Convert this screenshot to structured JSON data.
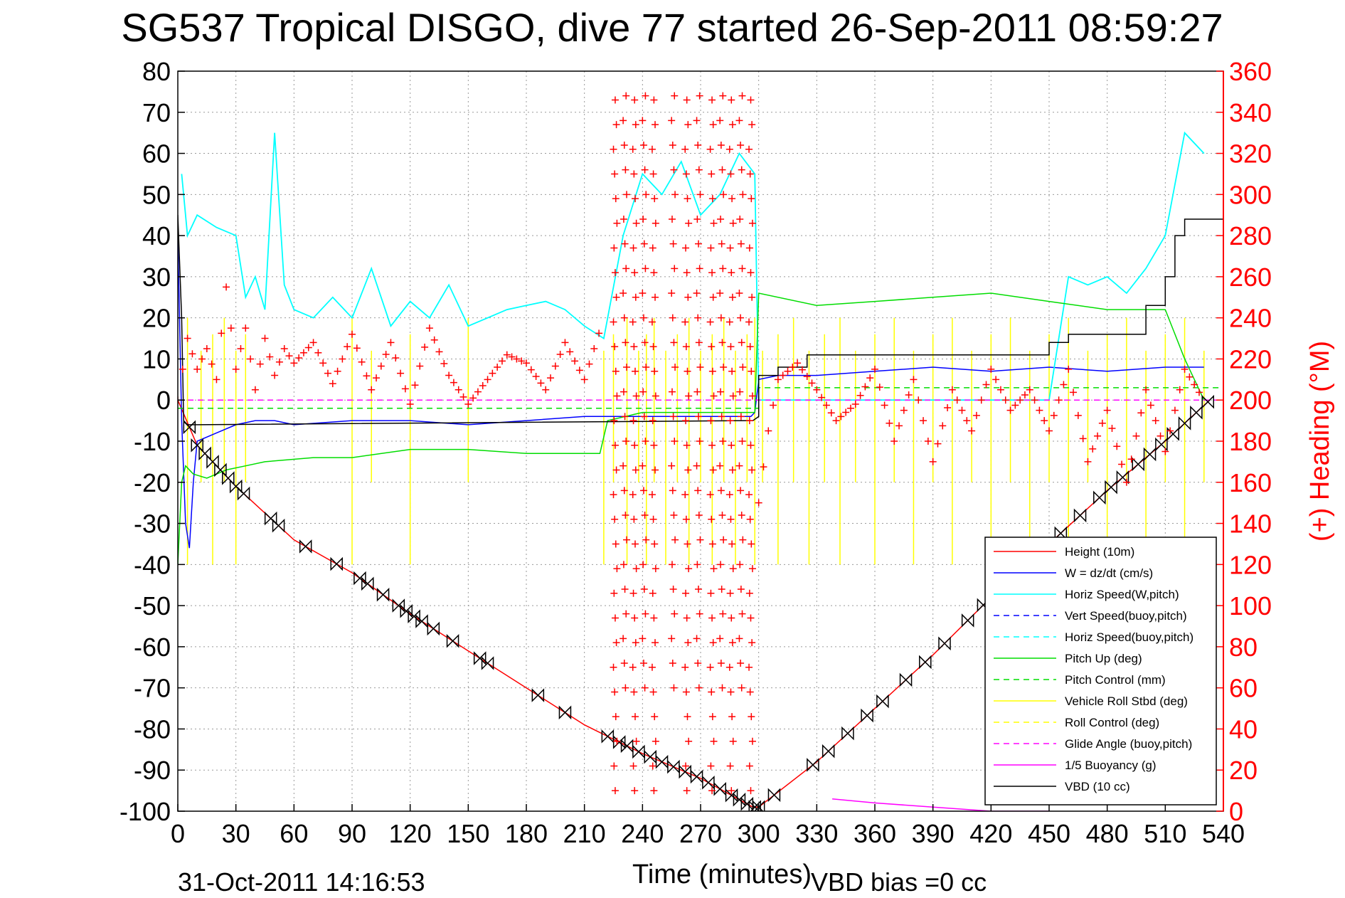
{
  "chart_data": {
    "type": "line",
    "title": "SG537 Tropical DISGO, dive 77 started 26-Sep-2011 08:59:27",
    "xlabel": "Time (minutes)",
    "ylabel": "",
    "y2label": "(+) Heading (°M)",
    "xlim": [
      0,
      540
    ],
    "ylim": [
      -100,
      80
    ],
    "y2lim": [
      0,
      360
    ],
    "x_ticks": [
      "0",
      "30",
      "60",
      "90",
      "120",
      "150",
      "180",
      "210",
      "240",
      "270",
      "300",
      "330",
      "360",
      "390",
      "420",
      "450",
      "480",
      "510",
      "540"
    ],
    "y_ticks": [
      "80",
      "70",
      "60",
      "50",
      "40",
      "30",
      "20",
      "10",
      "0",
      "-10",
      "-20",
      "-30",
      "-40",
      "-50",
      "-60",
      "-70",
      "-80",
      "-90",
      "-100"
    ],
    "y2_ticks": [
      "360",
      "340",
      "320",
      "300",
      "280",
      "260",
      "240",
      "220",
      "200",
      "180",
      "160",
      "140",
      "120",
      "100",
      "80",
      "60",
      "40",
      "20",
      "0"
    ],
    "grid": true,
    "legend_position": "bottom-right",
    "footer_left": "31-Oct-2011 14:16:53",
    "footer_right": "VBD bias =0 cc",
    "colors": {
      "height": "#ff0000",
      "w": "#0000ff",
      "horiz_w": "#00ffff",
      "vert_buoy": "#0000ff",
      "horiz_buoy": "#00ffff",
      "pitch": "#00dd00",
      "pitch_control": "#00dd00",
      "roll": "#ffff00",
      "roll_control": "#ffff00",
      "glide": "#ff00ff",
      "buoyancy": "#ff00ff",
      "vbd": "#000000",
      "heading": "#ff0000"
    },
    "series": [
      {
        "name": "Height (10m)",
        "key": "height",
        "dash": false,
        "x": [
          0,
          10,
          30,
          60,
          90,
          120,
          150,
          180,
          210,
          240,
          270,
          297,
          300,
          330,
          360,
          390,
          420,
          450,
          480,
          510,
          533
        ],
        "values": [
          0,
          -11,
          -21,
          -34,
          -42,
          -52,
          -61,
          -70,
          -79,
          -86,
          -92,
          -99,
          -99,
          -88,
          -75,
          -62,
          -48,
          -35,
          -22,
          -10,
          0
        ]
      },
      {
        "name": "W = dz/dt (cm/s)",
        "key": "w",
        "dash": false,
        "x": [
          0,
          2,
          4,
          6,
          8,
          10,
          20,
          30,
          40,
          50,
          60,
          90,
          120,
          150,
          180,
          210,
          240,
          270,
          296,
          298,
          300,
          310,
          330,
          360,
          390,
          420,
          450,
          480,
          510,
          530
        ],
        "values": [
          40,
          -5,
          -30,
          -36,
          -20,
          -10,
          -8,
          -6,
          -5,
          -5,
          -6,
          -5,
          -5,
          -6,
          -5,
          -4,
          -4,
          -4,
          -4,
          -3,
          5,
          6,
          6,
          7,
          8,
          7,
          8,
          7,
          8,
          8
        ]
      },
      {
        "name": "Horiz Speed(W,pitch)",
        "key": "horiz_w",
        "dash": false,
        "x": [
          2,
          5,
          10,
          20,
          30,
          35,
          40,
          45,
          50,
          55,
          60,
          70,
          80,
          90,
          100,
          110,
          120,
          130,
          140,
          150,
          160,
          170,
          180,
          190,
          200,
          210,
          220,
          230,
          240,
          250,
          260,
          270,
          280,
          290,
          298,
          300,
          330,
          360,
          390,
          420,
          450,
          460,
          470,
          480,
          490,
          500,
          510,
          520,
          530
        ],
        "values": [
          55,
          40,
          45,
          42,
          40,
          25,
          30,
          22,
          65,
          28,
          22,
          20,
          25,
          20,
          32,
          18,
          24,
          20,
          28,
          18,
          20,
          22,
          23,
          24,
          22,
          18,
          15,
          40,
          55,
          50,
          58,
          45,
          50,
          60,
          55,
          0,
          0,
          0,
          0,
          0,
          0,
          30,
          28,
          30,
          26,
          32,
          40,
          65,
          60
        ]
      },
      {
        "name": "Vert Speed(buoy,pitch)",
        "key": "vert_buoy",
        "dash": true,
        "x": [],
        "values": []
      },
      {
        "name": "Horiz Speed(buoy,pitch)",
        "key": "horiz_buoy",
        "dash": true,
        "x": [],
        "values": []
      },
      {
        "name": "Pitch Up (deg)",
        "key": "pitch",
        "dash": false,
        "x": [
          0,
          2,
          4,
          8,
          15,
          25,
          35,
          45,
          70,
          90,
          120,
          150,
          180,
          210,
          218,
          222,
          240,
          270,
          298,
          300,
          330,
          360,
          390,
          420,
          450,
          480,
          510,
          520,
          530
        ],
        "values": [
          -40,
          -20,
          -16,
          -18,
          -19,
          -17,
          -16,
          -15,
          -14,
          -14,
          -12,
          -12,
          -13,
          -13,
          -13,
          -5,
          -3,
          -3,
          -3,
          26,
          23,
          24,
          25,
          26,
          24,
          22,
          22,
          10,
          0
        ]
      },
      {
        "name": "Pitch Control (mm)",
        "key": "pitch_control",
        "dash": true,
        "x": [
          0,
          300,
          300,
          540
        ],
        "values": [
          -2,
          -2,
          3,
          3
        ]
      },
      {
        "name": "Vehicle Roll Stbd (deg)",
        "key": "roll",
        "dash": false,
        "x": [],
        "values": []
      },
      {
        "name": "Roll Control (deg)",
        "key": "roll_control",
        "dash": true,
        "x": [],
        "values": []
      },
      {
        "name": "Glide Angle (buoy,pitch)",
        "key": "glide",
        "dash": true,
        "x": [
          0,
          540
        ],
        "values": [
          0,
          0
        ]
      },
      {
        "name": "1/5 Buoyancy (g)",
        "key": "buoyancy",
        "dash": false,
        "x": [
          338,
          360,
          390,
          420,
          450
        ],
        "values": [
          -97,
          -98,
          -99,
          -100,
          -100
        ]
      },
      {
        "name": "VBD (10 cc)",
        "key": "vbd",
        "dash": false,
        "x": [
          0,
          2,
          3,
          5,
          10,
          295,
          297,
          300,
          300,
          310,
          310,
          325,
          325,
          450,
          450,
          460,
          460,
          500,
          500,
          510,
          510,
          515,
          515,
          520,
          520,
          530,
          540
        ],
        "values": [
          45,
          20,
          -5,
          -6,
          -6,
          -5,
          -5,
          -4,
          6,
          6,
          8,
          8,
          11,
          11,
          14,
          14,
          16,
          16,
          23,
          23,
          30,
          30,
          40,
          40,
          44,
          44,
          44
        ]
      }
    ],
    "heading_series": {
      "name": "(+) Heading",
      "x": [
        0,
        5,
        10,
        15,
        20,
        25,
        30,
        35,
        40,
        45,
        50,
        55,
        60,
        70,
        80,
        90,
        100,
        110,
        120,
        130,
        140,
        150,
        160,
        170,
        180,
        190,
        200,
        210,
        220,
        300,
        305,
        310,
        320,
        330,
        340,
        350,
        360,
        370,
        380,
        390,
        400,
        410,
        420,
        430,
        440,
        450,
        460,
        470,
        480,
        490,
        500,
        510,
        520,
        530
      ],
      "values": [
        200,
        230,
        215,
        225,
        210,
        255,
        215,
        235,
        205,
        230,
        212,
        225,
        218,
        228,
        208,
        232,
        205,
        228,
        198,
        235,
        212,
        198,
        210,
        222,
        218,
        205,
        228,
        210,
        240,
        150,
        185,
        210,
        218,
        205,
        190,
        198,
        215,
        180,
        210,
        170,
        205,
        185,
        215,
        195,
        205,
        185,
        215,
        170,
        195,
        160,
        205,
        175,
        215,
        200
      ]
    },
    "heading_spikes_x": [
      225,
      230,
      235,
      240,
      245,
      255,
      262,
      268,
      275,
      280,
      285,
      290,
      295
    ],
    "yellow_spikes_x": [
      5,
      12,
      18,
      24,
      30,
      35,
      90,
      100,
      120,
      150,
      220,
      225,
      232,
      238,
      242,
      246,
      252,
      258,
      264,
      270,
      276,
      282,
      288,
      294,
      298,
      302,
      310,
      318,
      326,
      334,
      342,
      350,
      360,
      370,
      380,
      390,
      400,
      410,
      420,
      430,
      440,
      450,
      460,
      470,
      480,
      490,
      500,
      510,
      520,
      530
    ],
    "depth_markers_x": [
      6,
      10,
      14,
      18,
      22,
      26,
      30,
      34,
      48,
      52,
      66,
      82,
      94,
      98,
      106,
      114,
      118,
      122,
      126,
      132,
      142,
      156,
      160,
      186,
      200,
      222,
      228,
      232,
      238,
      244,
      250,
      256,
      262,
      268,
      274,
      280,
      286,
      290,
      294,
      298,
      300,
      308,
      328,
      336,
      346,
      356,
      364,
      376,
      386,
      396,
      408,
      416,
      426,
      436,
      446,
      456,
      466,
      476,
      482,
      488,
      496,
      502,
      508,
      514,
      520,
      526,
      532
    ]
  }
}
